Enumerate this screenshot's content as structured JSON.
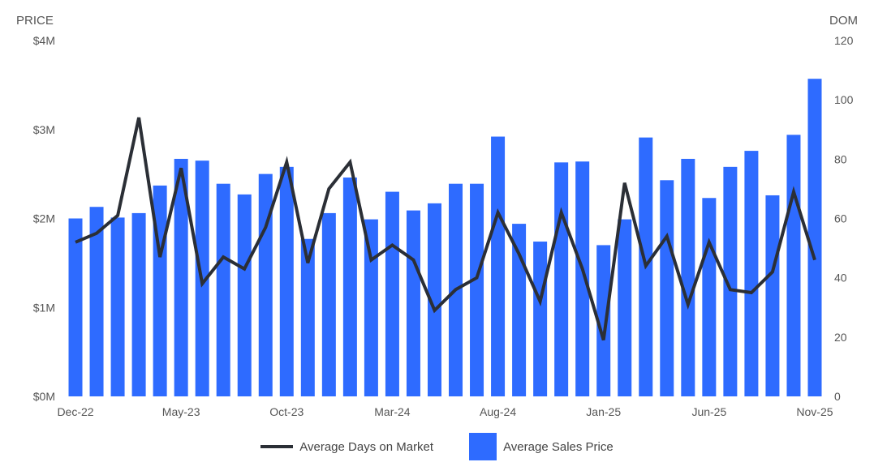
{
  "chart_data": {
    "type": "bar",
    "y_left_title": "PRICE",
    "y_right_title": "DOM",
    "y_left_ticks": [
      "$0M",
      "$1M",
      "$2M",
      "$3M",
      "$4M"
    ],
    "y_right_ticks": [
      "0",
      "20",
      "40",
      "60",
      "80",
      "100",
      "120"
    ],
    "ylim_left": [
      0,
      4000000
    ],
    "ylim_right": [
      0,
      120
    ],
    "x_tick_labels": [
      "Dec-22",
      "May-23",
      "Oct-23",
      "Mar-24",
      "Aug-24",
      "Jan-25",
      "Jun-25",
      "Nov-25"
    ],
    "categories": [
      "Dec-22",
      "Jan-23",
      "Feb-23",
      "Mar-23",
      "Apr-23",
      "May-23",
      "Jun-23",
      "Jul-23",
      "Aug-23",
      "Sep-23",
      "Oct-23",
      "Nov-23",
      "Dec-23",
      "Jan-24",
      "Feb-24",
      "Mar-24",
      "Apr-24",
      "May-24",
      "Jun-24",
      "Jul-24",
      "Aug-24",
      "Sep-24",
      "Oct-24",
      "Nov-24",
      "Dec-24",
      "Jan-25",
      "Feb-25",
      "Mar-25",
      "Apr-25",
      "May-25",
      "Jun-25",
      "Jul-25",
      "Aug-25",
      "Sep-25",
      "Oct-25",
      "Nov-25"
    ],
    "series": [
      {
        "name": "Average Sales Price",
        "kind": "bar",
        "axis": "left",
        "color": "#2e6bff",
        "values": [
          2000000,
          2130000,
          2010000,
          2060000,
          2370000,
          2670000,
          2650000,
          2390000,
          2270000,
          2500000,
          2580000,
          1770000,
          2060000,
          2460000,
          1990000,
          2300000,
          2090000,
          2170000,
          2390000,
          2390000,
          2920000,
          1940000,
          1740000,
          2630000,
          2640000,
          1700000,
          1990000,
          2910000,
          2430000,
          2670000,
          2230000,
          2580000,
          2760000,
          2260000,
          2940000,
          3570000
        ]
      },
      {
        "name": "Average Days on Market",
        "kind": "line",
        "axis": "right",
        "color": "#2b2f36",
        "values": [
          52,
          55,
          61,
          94,
          47,
          77,
          38,
          47,
          43,
          57,
          79,
          45,
          70,
          79,
          46,
          51,
          46,
          29,
          36,
          40,
          62,
          48,
          32,
          62,
          43,
          19,
          72,
          44,
          54,
          31,
          52,
          36,
          35,
          42,
          69,
          46
        ]
      }
    ],
    "legend": [
      "Average Days on Market",
      "Average Sales Price"
    ],
    "legend_position": "bottom",
    "grid": false
  }
}
